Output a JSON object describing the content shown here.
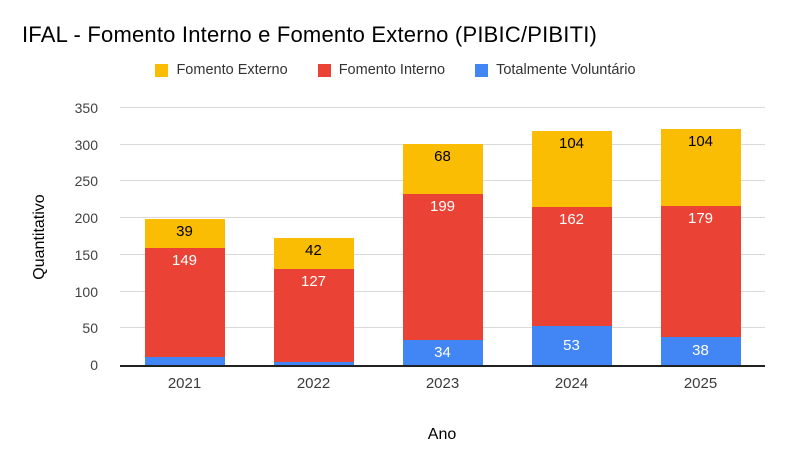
{
  "chart_data": {
    "type": "bar",
    "stacked": true,
    "title": "IFAL - Fomento Interno e Fomento Externo (PIBIC/PIBITI)",
    "categories": [
      "2021",
      "2022",
      "2023",
      "2024",
      "2025"
    ],
    "series": [
      {
        "name": "Totalmente Voluntário",
        "color": "#4285f4",
        "label_color": "#ffffff",
        "values": [
          11,
          4,
          34,
          53,
          38
        ]
      },
      {
        "name": "Fomento Interno",
        "color": "#ea4335",
        "label_color": "#ffffff",
        "values": [
          149,
          127,
          199,
          162,
          179
        ]
      },
      {
        "name": "Fomento Externo",
        "color": "#fbbc04",
        "label_color": "#000000",
        "values": [
          39,
          42,
          68,
          104,
          104
        ]
      }
    ],
    "legend": [
      {
        "label": "Fomento Externo",
        "color": "#fbbc04"
      },
      {
        "label": "Fomento Interno",
        "color": "#ea4335"
      },
      {
        "label": "Totalmente Voluntário",
        "color": "#4285f4"
      }
    ],
    "legend_position": "top",
    "xlabel": "Ano",
    "ylabel": "Quantitativo",
    "ylim": [
      0,
      350
    ],
    "yticks": [
      0,
      50,
      100,
      150,
      200,
      250,
      300,
      350
    ],
    "grid": true,
    "colors": {
      "background": "#ffffff",
      "gridline": "#d9d9d9",
      "axis_line": "#212121",
      "tick_text": "#424242",
      "title_text": "#000000"
    }
  }
}
